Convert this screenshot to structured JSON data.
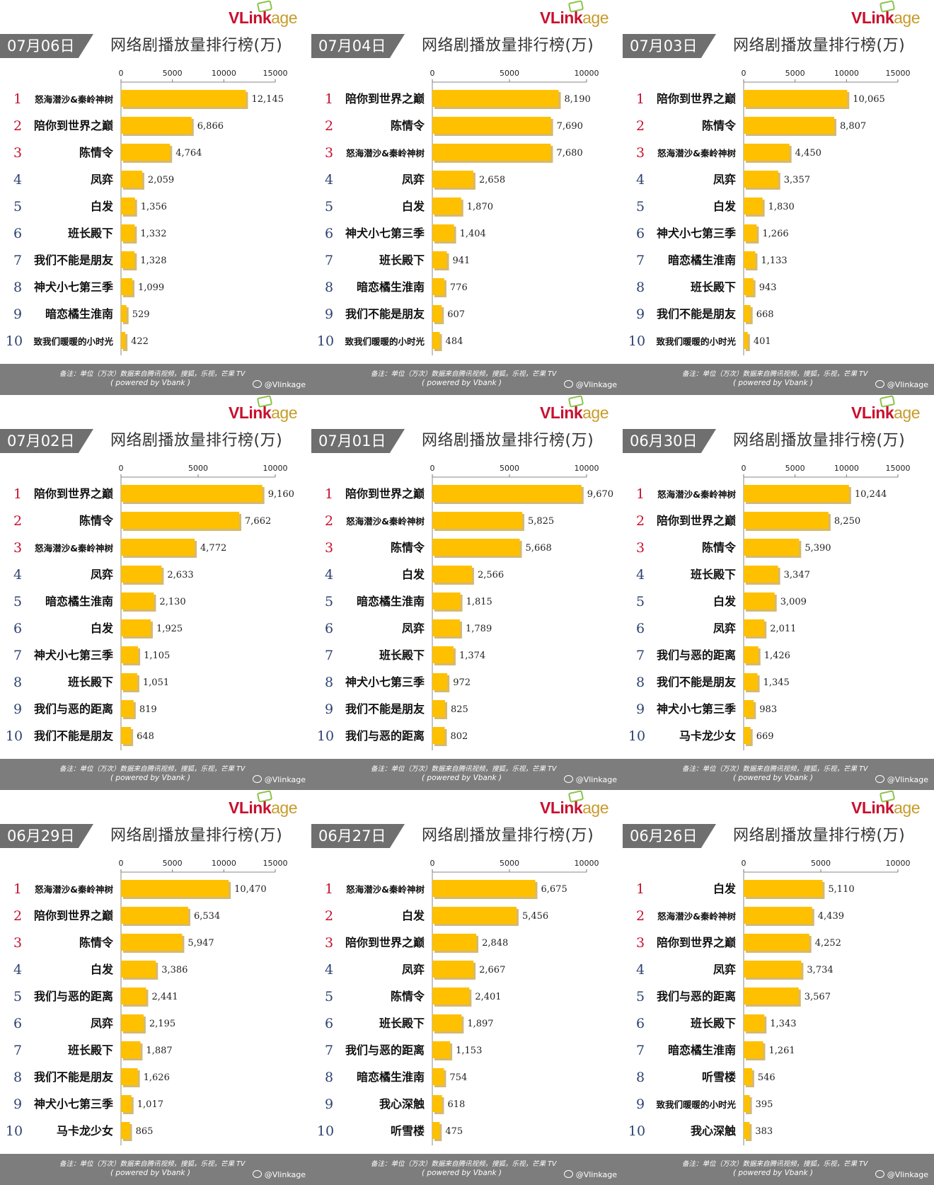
{
  "title": "网络剧播放量排行榜(万)",
  "logo": {
    "v": "VLink",
    "age": "age"
  },
  "footer": {
    "note": "备注：单位（万次）数据来自腾讯视频，搜狐，乐视，芒果 TV",
    "powered": "( powered by Vbank )",
    "weibo": "@Vlinkage",
    "icon": "weibo-icon"
  },
  "colors": {
    "bar": "#FFC000",
    "bar_shadow": "#B08000",
    "tab": "#6F6F6F",
    "footer": "#7D7D7D",
    "rank_top": "#C8102E",
    "rank_rest": "#2E4270"
  },
  "chart_data": [
    {
      "type": "bar",
      "orientation": "horizontal",
      "date": "07月06日",
      "xlim": [
        0,
        15000
      ],
      "ticks": [
        0,
        5000,
        10000,
        15000
      ],
      "categories": [
        "怒海潜沙&秦岭神树",
        "陪你到世界之巅",
        "陈情令",
        "凤弈",
        "白发",
        "班长殿下",
        "我们不能是朋友",
        "神犬小七第三季",
        "暗恋橘生淮南",
        "致我们暖暖的小时光"
      ],
      "values": [
        12145,
        6866,
        4764,
        2059,
        1356,
        1332,
        1328,
        1099,
        529,
        422
      ],
      "labels": [
        "12,145",
        "6,866",
        "4,764",
        "2,059",
        "1,356",
        "1,332",
        "1,328",
        "1,099",
        "529",
        "422"
      ]
    },
    {
      "type": "bar",
      "orientation": "horizontal",
      "date": "07月04日",
      "xlim": [
        0,
        10000
      ],
      "ticks": [
        0,
        5000,
        10000
      ],
      "categories": [
        "陪你到世界之巅",
        "陈情令",
        "怒海潜沙&秦岭神树",
        "凤弈",
        "白发",
        "神犬小七第三季",
        "班长殿下",
        "暗恋橘生淮南",
        "我们不能是朋友",
        "致我们暖暖的小时光"
      ],
      "values": [
        8190,
        7690,
        7680,
        2658,
        1870,
        1404,
        941,
        776,
        607,
        484
      ],
      "labels": [
        "8,190",
        "7,690",
        "7,680",
        "2,658",
        "1,870",
        "1,404",
        "941",
        "776",
        "607",
        "484"
      ]
    },
    {
      "type": "bar",
      "orientation": "horizontal",
      "date": "07月03日",
      "xlim": [
        0,
        15000
      ],
      "ticks": [
        0,
        5000,
        10000,
        15000
      ],
      "categories": [
        "陪你到世界之巅",
        "陈情令",
        "怒海潜沙&秦岭神树",
        "凤弈",
        "白发",
        "神犬小七第三季",
        "暗恋橘生淮南",
        "班长殿下",
        "我们不能是朋友",
        "致我们暖暖的小时光"
      ],
      "values": [
        10065,
        8807,
        4450,
        3357,
        1830,
        1266,
        1133,
        943,
        668,
        401
      ],
      "labels": [
        "10,065",
        "8,807",
        "4,450",
        "3,357",
        "1,830",
        "1,266",
        "1,133",
        "943",
        "668",
        "401"
      ]
    },
    {
      "type": "bar",
      "orientation": "horizontal",
      "date": "07月02日",
      "xlim": [
        0,
        10000
      ],
      "ticks": [
        0,
        5000,
        10000
      ],
      "categories": [
        "陪你到世界之巅",
        "陈情令",
        "怒海潜沙&秦岭神树",
        "凤弈",
        "暗恋橘生淮南",
        "白发",
        "神犬小七第三季",
        "班长殿下",
        "我们与恶的距离",
        "我们不能是朋友"
      ],
      "values": [
        9160,
        7662,
        4772,
        2633,
        2130,
        1925,
        1105,
        1051,
        819,
        648
      ],
      "labels": [
        "9,160",
        "7,662",
        "4,772",
        "2,633",
        "2,130",
        "1,925",
        "1,105",
        "1,051",
        "819",
        "648"
      ]
    },
    {
      "type": "bar",
      "orientation": "horizontal",
      "date": "07月01日",
      "xlim": [
        0,
        10000
      ],
      "ticks": [
        0,
        5000,
        10000
      ],
      "categories": [
        "陪你到世界之巅",
        "怒海潜沙&秦岭神树",
        "陈情令",
        "白发",
        "暗恋橘生淮南",
        "凤弈",
        "班长殿下",
        "神犬小七第三季",
        "我们不能是朋友",
        "我们与恶的距离"
      ],
      "values": [
        9670,
        5825,
        5668,
        2566,
        1815,
        1789,
        1374,
        972,
        825,
        802
      ],
      "labels": [
        "9,670",
        "5,825",
        "5,668",
        "2,566",
        "1,815",
        "1,789",
        "1,374",
        "972",
        "825",
        "802"
      ]
    },
    {
      "type": "bar",
      "orientation": "horizontal",
      "date": "06月30日",
      "xlim": [
        0,
        15000
      ],
      "ticks": [
        0,
        5000,
        10000,
        15000
      ],
      "categories": [
        "怒海潜沙&秦岭神树",
        "陪你到世界之巅",
        "陈情令",
        "班长殿下",
        "白发",
        "凤弈",
        "我们与恶的距离",
        "我们不能是朋友",
        "神犬小七第三季",
        "马卡龙少女"
      ],
      "values": [
        10244,
        8250,
        5390,
        3347,
        3009,
        2011,
        1426,
        1345,
        983,
        669
      ],
      "labels": [
        "10,244",
        "8,250",
        "5,390",
        "3,347",
        "3,009",
        "2,011",
        "1,426",
        "1,345",
        "983",
        "669"
      ]
    },
    {
      "type": "bar",
      "orientation": "horizontal",
      "date": "06月29日",
      "xlim": [
        0,
        15000
      ],
      "ticks": [
        0,
        5000,
        10000,
        15000
      ],
      "categories": [
        "怒海潜沙&秦岭神树",
        "陪你到世界之巅",
        "陈情令",
        "白发",
        "我们与恶的距离",
        "凤弈",
        "班长殿下",
        "我们不能是朋友",
        "神犬小七第三季",
        "马卡龙少女"
      ],
      "values": [
        10470,
        6534,
        5947,
        3386,
        2441,
        2195,
        1887,
        1626,
        1017,
        865
      ],
      "labels": [
        "10,470",
        "6,534",
        "5,947",
        "3,386",
        "2,441",
        "2,195",
        "1,887",
        "1,626",
        "1,017",
        "865"
      ]
    },
    {
      "type": "bar",
      "orientation": "horizontal",
      "date": "06月27日",
      "xlim": [
        0,
        10000
      ],
      "ticks": [
        0,
        5000,
        10000
      ],
      "categories": [
        "怒海潜沙&秦岭神树",
        "白发",
        "陪你到世界之巅",
        "凤弈",
        "陈情令",
        "班长殿下",
        "我们与恶的距离",
        "暗恋橘生淮南",
        "我心深触",
        "听雪楼"
      ],
      "values": [
        6675,
        5456,
        2848,
        2667,
        2401,
        1897,
        1153,
        754,
        618,
        475
      ],
      "labels": [
        "6,675",
        "5,456",
        "2,848",
        "2,667",
        "2,401",
        "1,897",
        "1,153",
        "754",
        "618",
        "475"
      ]
    },
    {
      "type": "bar",
      "orientation": "horizontal",
      "date": "06月26日",
      "xlim": [
        0,
        10000
      ],
      "ticks": [
        0,
        5000,
        10000
      ],
      "categories": [
        "白发",
        "怒海潜沙&秦岭神树",
        "陪你到世界之巅",
        "凤弈",
        "我们与恶的距离",
        "班长殿下",
        "暗恋橘生淮南",
        "听雪楼",
        "致我们暖暖的小时光",
        "我心深触"
      ],
      "values": [
        5110,
        4439,
        4252,
        3734,
        3567,
        1343,
        1261,
        546,
        395,
        383
      ],
      "labels": [
        "5,110",
        "4,439",
        "4,252",
        "3,734",
        "3,567",
        "1,343",
        "1,261",
        "546",
        "395",
        "383"
      ]
    }
  ]
}
